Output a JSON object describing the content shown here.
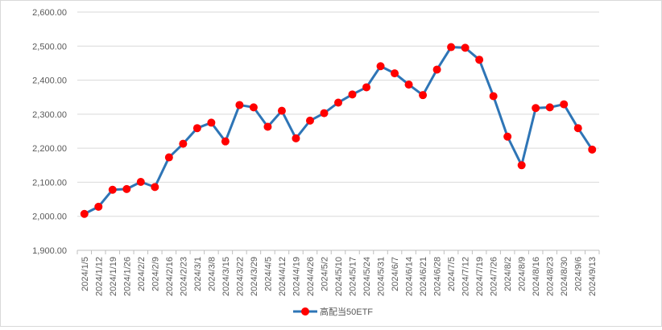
{
  "chart_data": {
    "type": "line",
    "title": "",
    "xlabel": "",
    "ylabel": "",
    "ylim": [
      1900,
      2600
    ],
    "y_ticks": [
      "1,900.00",
      "2,000.00",
      "2,100.00",
      "2,200.00",
      "2,300.00",
      "2,400.00",
      "2,500.00",
      "2,600.00"
    ],
    "grid": true,
    "legend_position": "bottom",
    "categories": [
      "2024/1/5",
      "2024/1/12",
      "2024/1/19",
      "2024/1/26",
      "2024/2/2",
      "2024/2/9",
      "2024/2/16",
      "2024/2/23",
      "2024/3/1",
      "2024/3/8",
      "2024/3/15",
      "2024/3/22",
      "2024/3/29",
      "2024/4/5",
      "2024/4/12",
      "2024/4/19",
      "2024/4/26",
      "2024/5/2",
      "2024/5/10",
      "2024/5/17",
      "2024/5/24",
      "2024/5/31",
      "2024/6/7",
      "2024/6/14",
      "2024/6/21",
      "2024/6/28",
      "2024/7/5",
      "2024/7/12",
      "2024/7/19",
      "2024/7/26",
      "2024/8/2",
      "2024/8/9",
      "2024/8/16",
      "2024/8/23",
      "2024/8/30",
      "2024/9/6",
      "2024/9/13"
    ],
    "series": [
      {
        "name": "高配当50ETF",
        "line_color": "#2e75b6",
        "marker_color": "#ff0000",
        "values": [
          2007,
          2028,
          2078,
          2080,
          2101,
          2086,
          2173,
          2213,
          2259,
          2275,
          2220,
          2327,
          2320,
          2263,
          2310,
          2229,
          2281,
          2303,
          2334,
          2358,
          2379,
          2441,
          2420,
          2387,
          2356,
          2431,
          2497,
          2495,
          2460,
          2353,
          2234,
          2150,
          2318,
          2320,
          2329,
          2259,
          2196
        ]
      }
    ]
  }
}
